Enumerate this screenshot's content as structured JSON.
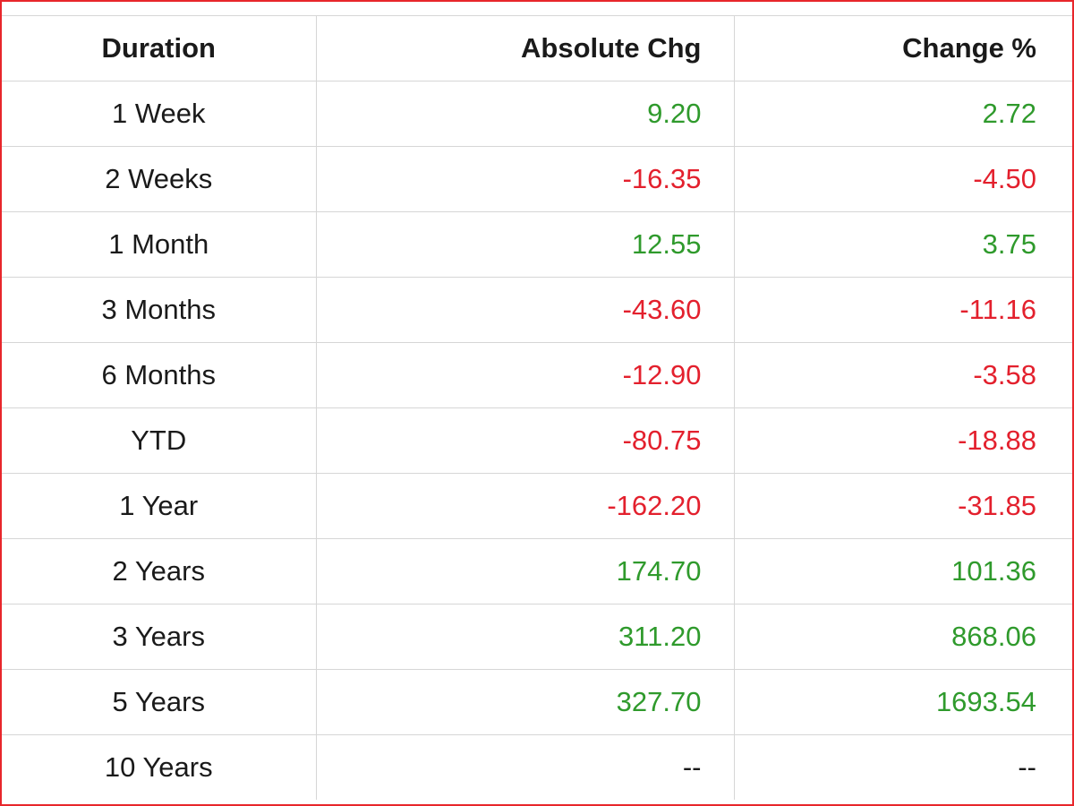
{
  "table": {
    "header": [
      "Duration",
      "Absolute Chg",
      "Change %"
    ],
    "rows": [
      [
        "1 Week",
        "9.20",
        "2.72"
      ],
      [
        "2 Weeks",
        "-16.35",
        "-4.50"
      ],
      [
        "1 Month",
        "12.55",
        "3.75"
      ],
      [
        "3 Months",
        "-43.60",
        "-11.16"
      ],
      [
        "6 Months",
        "-12.90",
        "-3.58"
      ],
      [
        "YTD",
        "-80.75",
        "-18.88"
      ],
      [
        "1 Year",
        "-162.20",
        "-31.85"
      ],
      [
        "2 Years",
        "174.70",
        "101.36"
      ],
      [
        "3 Years",
        "311.20",
        "868.06"
      ],
      [
        "5 Years",
        "327.70",
        "1693.54"
      ],
      [
        "10 Years",
        "--",
        "--"
      ]
    ],
    "colors": {
      "positive": "#2f9a2c",
      "negative": "#e3202d",
      "neutral": "#1a1a1a"
    }
  }
}
